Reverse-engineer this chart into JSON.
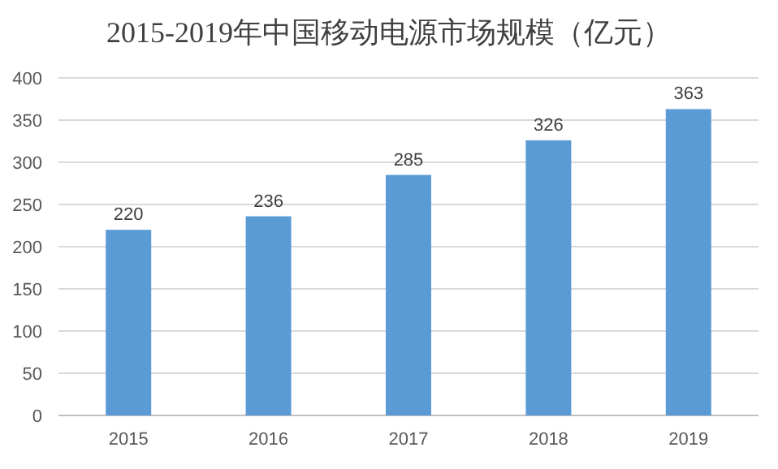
{
  "chart_data": {
    "type": "bar",
    "title": "2015-2019年中国移动电源市场规模（亿元）",
    "categories": [
      "2015",
      "2016",
      "2017",
      "2018",
      "2019"
    ],
    "values": [
      220,
      236,
      285,
      326,
      363
    ],
    "color": "#5b9bd5",
    "ylim": [
      0,
      400
    ],
    "yticks": [
      0,
      50,
      100,
      150,
      200,
      250,
      300,
      350,
      400
    ],
    "grid": "y",
    "data_labels": true
  }
}
